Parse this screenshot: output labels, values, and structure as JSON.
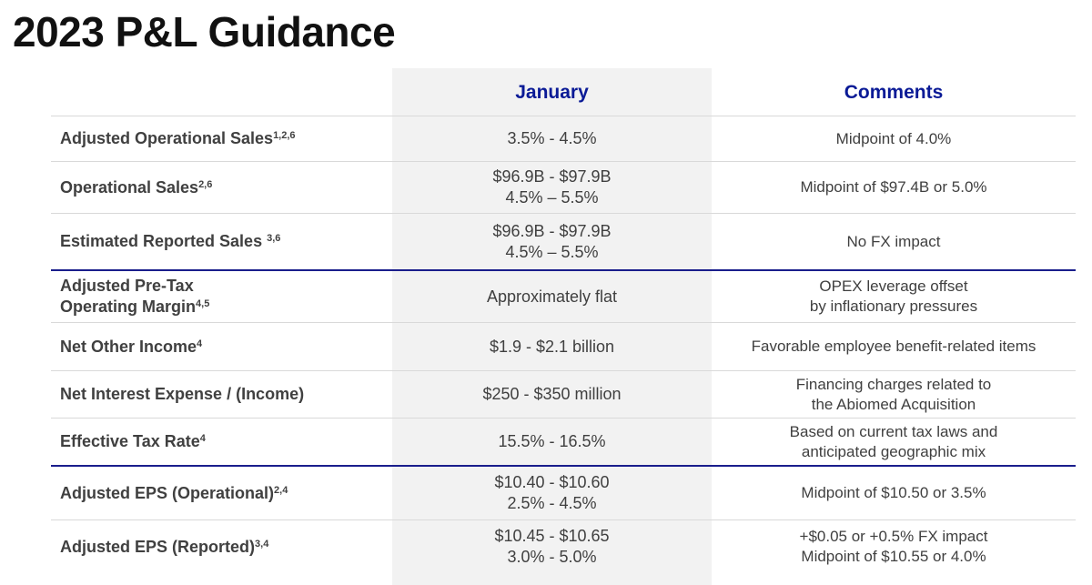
{
  "title": "2023 P&L Guidance",
  "headers": {
    "january": "January",
    "comments": "Comments"
  },
  "rows": [
    {
      "label": "Adjusted Operational Sales",
      "sup": "1,2,6",
      "january": [
        "3.5% - 4.5%"
      ],
      "comments": [
        "Midpoint of 4.0%"
      ]
    },
    {
      "label": "Operational Sales",
      "sup": "2,6",
      "january": [
        "$96.9B - $97.9B",
        "4.5% – 5.5%"
      ],
      "comments": [
        "Midpoint of $97.4B or 5.0%"
      ]
    },
    {
      "label": "Estimated Reported Sales ",
      "sup": "3,6",
      "january": [
        "$96.9B - $97.9B",
        "4.5% – 5.5%"
      ],
      "comments": [
        "No FX impact"
      ]
    },
    {
      "label": [
        "Adjusted Pre-Tax",
        "Operating Margin"
      ],
      "sup": "4,5",
      "january": [
        "Approximately flat"
      ],
      "comments": [
        "OPEX leverage offset",
        "by inflationary pressures"
      ]
    },
    {
      "label": "Net Other Income",
      "sup": "4",
      "january": [
        "$1.9 - $2.1 billion"
      ],
      "comments": [
        "Favorable employee benefit-related items"
      ]
    },
    {
      "label": "Net Interest Expense / (Income)",
      "sup": "",
      "january": [
        "$250 - $350 million"
      ],
      "comments": [
        "Financing charges related to",
        "the Abiomed Acquisition"
      ]
    },
    {
      "label": "Effective Tax Rate",
      "sup": "4",
      "january": [
        "15.5% - 16.5%"
      ],
      "comments": [
        "Based on current tax laws and",
        "anticipated geographic mix"
      ]
    },
    {
      "label": "Adjusted EPS (Operational)",
      "sup": "2,4",
      "january": [
        "$10.40 - $10.60",
        "2.5% - 4.5%"
      ],
      "comments": [
        "Midpoint of $10.50 or 3.5%"
      ]
    },
    {
      "label": "Adjusted EPS (Reported)",
      "sup": "3,4",
      "january": [
        "$10.45 - $10.65",
        "3.0% - 5.0%"
      ],
      "comments": [
        "+$0.05 or +0.5% FX impact",
        "Midpoint of $10.55 or 4.0%"
      ]
    }
  ]
}
